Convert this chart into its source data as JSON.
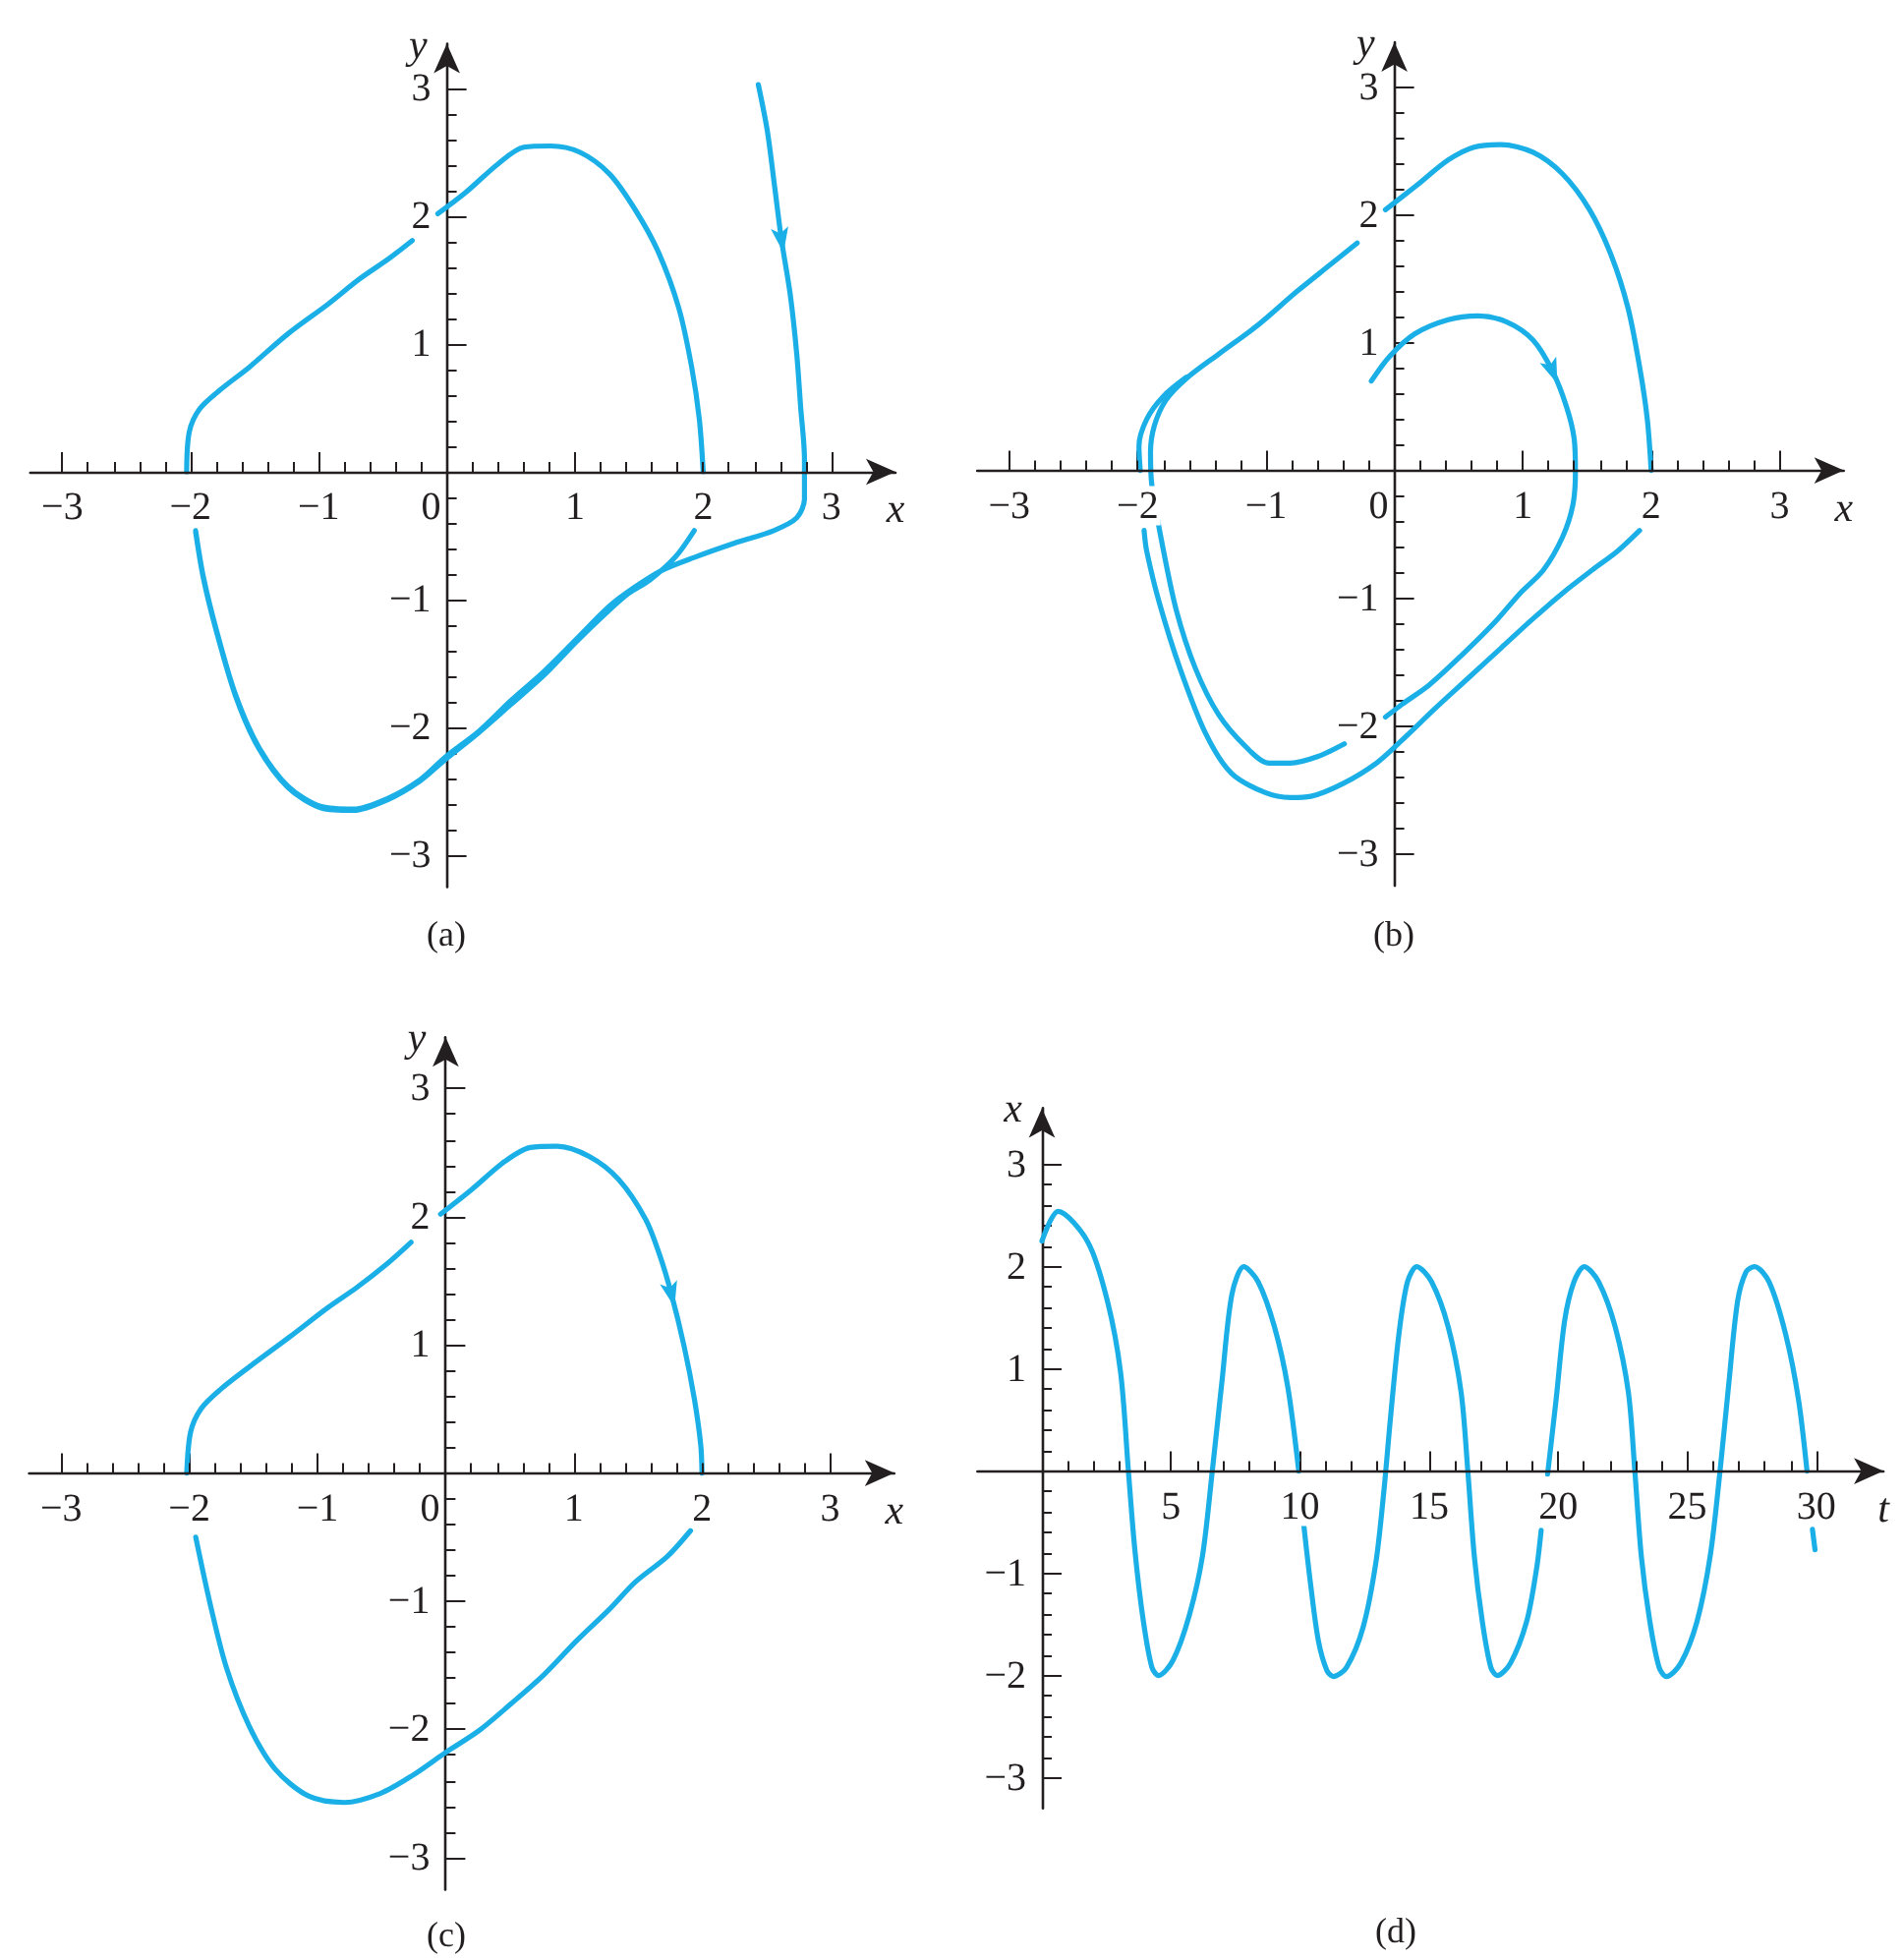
{
  "chart_data": [
    {
      "type": "line",
      "title": "(a)",
      "xlabel": "x",
      "ylabel": "y",
      "xlim": [
        -3.25,
        3.5
      ],
      "ylim": [
        -3.25,
        3.35
      ],
      "xticks": [
        {
          "value": -3,
          "label": "−3"
        },
        {
          "value": -2.8,
          "label": null
        },
        {
          "value": -2.6,
          "label": null
        },
        {
          "value": -2.4,
          "label": null
        },
        {
          "value": -2.2,
          "label": null
        },
        {
          "value": -2,
          "label": "−2"
        },
        {
          "value": -1.8,
          "label": null
        },
        {
          "value": -1.6,
          "label": null
        },
        {
          "value": -1.4,
          "label": null
        },
        {
          "value": -1.2,
          "label": null
        },
        {
          "value": -1,
          "label": "−1"
        },
        {
          "value": -0.8,
          "label": null
        },
        {
          "value": -0.6,
          "label": null
        },
        {
          "value": -0.4,
          "label": null
        },
        {
          "value": -0.2,
          "label": null
        },
        0,
        {
          "value": 0.2,
          "label": null
        },
        {
          "value": 0.4,
          "label": null
        },
        {
          "value": 0.6,
          "label": null
        },
        {
          "value": 0.8,
          "label": null
        },
        1,
        {
          "value": 1.2,
          "label": null
        },
        {
          "value": 1.4,
          "label": null
        },
        {
          "value": 1.6,
          "label": null
        },
        {
          "value": 1.8,
          "label": null
        },
        2,
        {
          "value": 2.2,
          "label": null
        },
        {
          "value": 2.4,
          "label": null
        },
        {
          "value": 2.6,
          "label": null
        },
        {
          "value": 2.8,
          "label": null
        },
        3
      ],
      "yticks": [
        {
          "value": -3,
          "label": "−3"
        },
        {
          "value": -2.8,
          "label": null
        },
        {
          "value": -2.6,
          "label": null
        },
        {
          "value": -2.4,
          "label": null
        },
        {
          "value": -2.2,
          "label": null
        },
        {
          "value": -2,
          "label": "−2"
        },
        {
          "value": -1.8,
          "label": null
        },
        {
          "value": -1.6,
          "label": null
        },
        {
          "value": -1.4,
          "label": null
        },
        {
          "value": -1.2,
          "label": null
        },
        {
          "value": -1,
          "label": "−1"
        },
        {
          "value": -0.8,
          "label": null
        },
        {
          "value": -0.6,
          "label": null
        },
        {
          "value": -0.4,
          "label": null
        },
        {
          "value": -0.2,
          "label": null
        },
        {
          "value": 0.2,
          "label": null
        },
        {
          "value": 0.4,
          "label": null
        },
        {
          "value": 0.6,
          "label": null
        },
        {
          "value": 0.8,
          "label": null
        },
        1,
        {
          "value": 1.2,
          "label": null
        },
        {
          "value": 1.4,
          "label": null
        },
        {
          "value": 1.6,
          "label": null
        },
        {
          "value": 1.8,
          "label": null
        },
        2,
        {
          "value": 2.2,
          "label": null
        },
        {
          "value": 2.4,
          "label": null
        },
        {
          "value": 2.6,
          "label": null
        },
        {
          "value": 2.8,
          "label": null
        },
        3
      ],
      "series": [
        {
          "color": "#1aafe6",
          "x": [
            2.43,
            2.5,
            2.56,
            2.61,
            2.68,
            2.73,
            2.76,
            2.79,
            2.79,
            2.73,
            2.55,
            2.24,
            1.93,
            1.68,
            1.47,
            1.27,
            1.01,
            0.76,
            0.5,
            0.25,
            -0.01,
            -0.21,
            -0.47,
            -0.73,
            -0.98,
            -1.24,
            -1.47,
            -1.65,
            -1.8,
            -1.9,
            -1.96,
            null,
            -2.03,
            -2.01,
            -1.93,
            -1.77,
            -1.54,
            -1.24,
            -0.93,
            -0.68,
            -0.45,
            -0.27,
            null,
            -0.07,
            0.14,
            0.4,
            0.6,
            0.81,
            1.04,
            1.27,
            1.47,
            1.65,
            1.81,
            1.91,
            1.97,
            2.0,
            null,
            1.93,
            1.78,
            1.58,
            1.42,
            1.27,
            1.01,
            0.76,
            0.5,
            0.25,
            -0.01,
            -0.21,
            -0.47,
            -0.73,
            -0.98,
            -1.24,
            -1.47,
            -1.65,
            -1.8,
            -1.9,
            -1.96
          ],
          "values": [
            3.03,
            2.67,
            2.21,
            1.82,
            1.38,
            0.92,
            0.51,
            0.1,
            -0.21,
            -0.36,
            -0.46,
            -0.56,
            -0.67,
            -0.77,
            -0.9,
            -1.05,
            -1.31,
            -1.56,
            -1.79,
            -2.03,
            -2.23,
            -2.41,
            -2.56,
            -2.64,
            -2.62,
            -2.46,
            -2.15,
            -1.74,
            -1.23,
            -0.82,
            -0.46,
            null,
            0,
            0.31,
            0.49,
            0.64,
            0.82,
            1.08,
            1.31,
            1.51,
            1.67,
            1.81,
            null,
            2.02,
            2.18,
            2.41,
            2.54,
            2.55,
            2.5,
            2.33,
            2.05,
            1.72,
            1.28,
            0.82,
            0.41,
            0,
            null,
            -0.46,
            -0.67,
            -0.85,
            -0.95,
            -1.08,
            -1.33,
            -1.59,
            -1.82,
            -2.04,
            -2.25,
            -2.42,
            -2.57,
            -2.65,
            -2.63,
            -2.47,
            -2.16,
            -1.75,
            -1.24,
            -0.83,
            -0.47
          ]
        }
      ]
    },
    {
      "type": "line",
      "title": "(b)",
      "xlabel": "x",
      "ylabel": "y",
      "xlim": [
        -3.25,
        3.5
      ],
      "ylim": [
        -3.25,
        3.35
      ],
      "xticks": [
        {
          "value": -3,
          "label": "−3"
        },
        {
          "value": -2.8,
          "label": null
        },
        {
          "value": -2.6,
          "label": null
        },
        {
          "value": -2.4,
          "label": null
        },
        {
          "value": -2.2,
          "label": null
        },
        {
          "value": -2,
          "label": "−2"
        },
        {
          "value": -1.8,
          "label": null
        },
        {
          "value": -1.6,
          "label": null
        },
        {
          "value": -1.4,
          "label": null
        },
        {
          "value": -1.2,
          "label": null
        },
        {
          "value": -1,
          "label": "−1"
        },
        {
          "value": -0.8,
          "label": null
        },
        {
          "value": -0.6,
          "label": null
        },
        {
          "value": -0.4,
          "label": null
        },
        {
          "value": -0.2,
          "label": null
        },
        0,
        {
          "value": 0.2,
          "label": null
        },
        {
          "value": 0.4,
          "label": null
        },
        {
          "value": 0.6,
          "label": null
        },
        {
          "value": 0.8,
          "label": null
        },
        1,
        {
          "value": 1.2,
          "label": null
        },
        {
          "value": 1.4,
          "label": null
        },
        {
          "value": 1.6,
          "label": null
        },
        {
          "value": 1.8,
          "label": null
        },
        2,
        {
          "value": 2.2,
          "label": null
        },
        {
          "value": 2.4,
          "label": null
        },
        {
          "value": 2.6,
          "label": null
        },
        {
          "value": 2.8,
          "label": null
        },
        3
      ],
      "yticks": [
        {
          "value": -3,
          "label": "−3"
        },
        {
          "value": -2.8,
          "label": null
        },
        {
          "value": -2.6,
          "label": null
        },
        {
          "value": -2.4,
          "label": null
        },
        {
          "value": -2.2,
          "label": null
        },
        {
          "value": -2,
          "label": "−2"
        },
        {
          "value": -1.8,
          "label": null
        },
        {
          "value": -1.6,
          "label": null
        },
        {
          "value": -1.4,
          "label": null
        },
        {
          "value": -1.2,
          "label": null
        },
        {
          "value": -1,
          "label": "−1"
        },
        {
          "value": -0.8,
          "label": null
        },
        {
          "value": -0.6,
          "label": null
        },
        {
          "value": -0.4,
          "label": null
        },
        {
          "value": -0.2,
          "label": null
        },
        {
          "value": 0.2,
          "label": null
        },
        {
          "value": 0.4,
          "label": null
        },
        {
          "value": 0.6,
          "label": null
        },
        {
          "value": 0.8,
          "label": null
        },
        1,
        {
          "value": 1.2,
          "label": null
        },
        {
          "value": 1.4,
          "label": null
        },
        {
          "value": 1.6,
          "label": null
        },
        {
          "value": 1.8,
          "label": null
        },
        2,
        {
          "value": 2.2,
          "label": null
        },
        {
          "value": 2.4,
          "label": null
        },
        {
          "value": 2.6,
          "label": null
        },
        {
          "value": 2.8,
          "label": null
        },
        3
      ],
      "series": [
        {
          "color": "#1aafe6",
          "x": [
            -0.18,
            -0.04,
            0.16,
            0.42,
            0.65,
            0.88,
            1.08,
            1.23,
            1.34,
            1.4,
            1.41,
            1.39,
            1.31,
            1.16,
            0.98,
            0.78,
            0.52,
            0.27,
            0.06,
            -0.07,
            null,
            -0.39,
            -0.6,
            -0.81,
            -0.98,
            -1.16,
            -1.37,
            -1.55,
            -1.7,
            -1.81,
            -1.89,
            -1.9,
            -1.87,
            -1.78,
            -1.62,
            -1.37,
            -1.06,
            -0.76,
            -0.5,
            -0.29,
            null,
            -0.07,
            0.16,
            0.42,
            0.62,
            0.83,
            1.08,
            1.31,
            1.52,
            1.69,
            1.82,
            1.91,
            1.97,
            2.0,
            null,
            1.91,
            1.74,
            1.54,
            1.31,
            1.08,
            0.83,
            0.57,
            0.32,
            0.06,
            -0.14,
            -0.4,
            -0.65,
            -0.81,
            -1.01,
            -1.27,
            -1.47,
            -1.67,
            -1.83,
            -1.93,
            -1.95,
            null,
            -1.98,
            -1.99,
            -1.93,
            -1.8,
            -1.62
          ],
          "values": [
            0.7,
            0.89,
            1.07,
            1.18,
            1.21,
            1.16,
            1.02,
            0.78,
            0.5,
            0.25,
            -0.01,
            -0.27,
            -0.52,
            -0.78,
            -0.96,
            -1.19,
            -1.45,
            -1.68,
            -1.83,
            -1.93,
            null,
            -2.14,
            -2.24,
            -2.29,
            -2.29,
            -2.16,
            -1.91,
            -1.55,
            -1.09,
            -0.57,
            -0.11,
            0.14,
            0.35,
            0.55,
            0.72,
            0.91,
            1.14,
            1.4,
            1.61,
            1.78,
            null,
            2.04,
            2.22,
            2.43,
            2.53,
            2.55,
            2.49,
            2.32,
            2.04,
            1.68,
            1.27,
            0.81,
            0.4,
            0,
            null,
            -0.47,
            -0.63,
            -0.78,
            -0.96,
            -1.16,
            -1.39,
            -1.63,
            -1.86,
            -2.11,
            -2.29,
            -2.45,
            -2.55,
            -2.56,
            -2.52,
            -2.37,
            -2.06,
            -1.55,
            -1.04,
            -0.63,
            -0.47,
            null,
            0,
            0.19,
            0.4,
            0.58,
            0.73
          ]
        }
      ]
    },
    {
      "type": "line",
      "title": "(c)",
      "xlabel": "x",
      "ylabel": "y",
      "xlim": [
        -3.25,
        3.5
      ],
      "ylim": [
        -3.25,
        3.4
      ],
      "xticks": [
        {
          "value": -3,
          "label": "−3"
        },
        {
          "value": -2.8,
          "label": null
        },
        {
          "value": -2.6,
          "label": null
        },
        {
          "value": -2.4,
          "label": null
        },
        {
          "value": -2.2,
          "label": null
        },
        {
          "value": -2,
          "label": "−2"
        },
        {
          "value": -1.8,
          "label": null
        },
        {
          "value": -1.6,
          "label": null
        },
        {
          "value": -1.4,
          "label": null
        },
        {
          "value": -1.2,
          "label": null
        },
        {
          "value": -1,
          "label": "−1"
        },
        {
          "value": -0.8,
          "label": null
        },
        {
          "value": -0.6,
          "label": null
        },
        {
          "value": -0.4,
          "label": null
        },
        {
          "value": -0.2,
          "label": null
        },
        0,
        {
          "value": 0.2,
          "label": null
        },
        {
          "value": 0.4,
          "label": null
        },
        {
          "value": 0.6,
          "label": null
        },
        {
          "value": 0.8,
          "label": null
        },
        1,
        {
          "value": 1.2,
          "label": null
        },
        {
          "value": 1.4,
          "label": null
        },
        {
          "value": 1.6,
          "label": null
        },
        {
          "value": 1.8,
          "label": null
        },
        2,
        {
          "value": 2.2,
          "label": null
        },
        {
          "value": 2.4,
          "label": null
        },
        {
          "value": 2.6,
          "label": null
        },
        {
          "value": 2.8,
          "label": null
        },
        3
      ],
      "yticks": [
        {
          "value": -3,
          "label": "−3"
        },
        {
          "value": -2.8,
          "label": null
        },
        {
          "value": -2.6,
          "label": null
        },
        {
          "value": -2.4,
          "label": null
        },
        {
          "value": -2.2,
          "label": null
        },
        {
          "value": -2,
          "label": "−2"
        },
        {
          "value": -1.8,
          "label": null
        },
        {
          "value": -1.6,
          "label": null
        },
        {
          "value": -1.4,
          "label": null
        },
        {
          "value": -1.2,
          "label": null
        },
        {
          "value": -1,
          "label": "−1"
        },
        {
          "value": -0.8,
          "label": null
        },
        {
          "value": -0.6,
          "label": null
        },
        {
          "value": -0.4,
          "label": null
        },
        {
          "value": -0.2,
          "label": null
        },
        {
          "value": 0.2,
          "label": null
        },
        {
          "value": 0.4,
          "label": null
        },
        {
          "value": 0.6,
          "label": null
        },
        {
          "value": 0.8,
          "label": null
        },
        1,
        {
          "value": 1.2,
          "label": null
        },
        {
          "value": 1.4,
          "label": null
        },
        {
          "value": 1.6,
          "label": null
        },
        {
          "value": 1.8,
          "label": null
        },
        2,
        {
          "value": 2.2,
          "label": null
        },
        {
          "value": 2.4,
          "label": null
        },
        {
          "value": 2.6,
          "label": null
        },
        {
          "value": 2.8,
          "label": null
        },
        3
      ],
      "series": [
        {
          "color": "#1aafe6",
          "x": [
            1.91,
            1.73,
            1.48,
            1.28,
            1.02,
            0.77,
            0.51,
            0.26,
            0,
            -0.26,
            -0.51,
            -0.79,
            -1.07,
            -1.33,
            -1.53,
            -1.71,
            -1.84,
            -1.95,
            null,
            -2.02,
            -1.99,
            -1.91,
            -1.76,
            -1.53,
            -1.22,
            -0.92,
            -0.69,
            -0.46,
            -0.27,
            null,
            -0.04,
            0.2,
            0.46,
            0.66,
            0.87,
            1.12,
            1.35,
            1.56,
            1.67,
            1.76,
            1.86,
            1.94,
            1.99,
            2.0
          ],
          "values": [
            -0.45,
            -0.65,
            -0.85,
            -1.06,
            -1.31,
            -1.57,
            -1.8,
            -2.01,
            -2.18,
            -2.36,
            -2.5,
            -2.57,
            -2.52,
            -2.31,
            -1.98,
            -1.52,
            -1.01,
            -0.5,
            null,
            0,
            0.32,
            0.5,
            0.65,
            0.83,
            1.06,
            1.29,
            1.45,
            1.63,
            1.8,
            null,
            2.02,
            2.21,
            2.43,
            2.54,
            2.55,
            2.47,
            2.29,
            1.98,
            1.7,
            1.4,
            0.99,
            0.58,
            0.22,
            0
          ]
        }
      ]
    },
    {
      "type": "line",
      "title": "(d)",
      "xlabel": "t",
      "ylabel": "x",
      "xlim": [
        -2.5,
        32.6
      ],
      "ylim": [
        -3.3,
        3.55
      ],
      "xticks": [
        {
          "value": 1,
          "label": null
        },
        {
          "value": 2,
          "label": null
        },
        {
          "value": 3,
          "label": null
        },
        {
          "value": 4,
          "label": null
        },
        5,
        {
          "value": 6,
          "label": null
        },
        {
          "value": 7,
          "label": null
        },
        {
          "value": 8,
          "label": null
        },
        {
          "value": 9,
          "label": null
        },
        10,
        {
          "value": 11,
          "label": null
        },
        {
          "value": 12,
          "label": null
        },
        {
          "value": 13,
          "label": null
        },
        {
          "value": 14,
          "label": null
        },
        15,
        {
          "value": 16,
          "label": null
        },
        {
          "value": 17,
          "label": null
        },
        {
          "value": 18,
          "label": null
        },
        {
          "value": 19,
          "label": null
        },
        20,
        {
          "value": 21,
          "label": null
        },
        {
          "value": 22,
          "label": null
        },
        {
          "value": 23,
          "label": null
        },
        {
          "value": 24,
          "label": null
        },
        25,
        {
          "value": 26,
          "label": null
        },
        {
          "value": 27,
          "label": null
        },
        {
          "value": 28,
          "label": null
        },
        {
          "value": 29,
          "label": null
        },
        30
      ],
      "yticks": [
        {
          "value": -3,
          "label": "−3"
        },
        {
          "value": -2.8,
          "label": null
        },
        {
          "value": -2.6,
          "label": null
        },
        {
          "value": -2.4,
          "label": null
        },
        {
          "value": -2.2,
          "label": null
        },
        {
          "value": -2,
          "label": "−2"
        },
        {
          "value": -1.8,
          "label": null
        },
        {
          "value": -1.6,
          "label": null
        },
        {
          "value": -1.4,
          "label": null
        },
        {
          "value": -1.2,
          "label": null
        },
        {
          "value": -1,
          "label": "−1"
        },
        {
          "value": -0.8,
          "label": null
        },
        {
          "value": -0.6,
          "label": null
        },
        {
          "value": -0.4,
          "label": null
        },
        {
          "value": -0.2,
          "label": null
        },
        {
          "value": 0.2,
          "label": null
        },
        {
          "value": 0.4,
          "label": null
        },
        {
          "value": 0.6,
          "label": null
        },
        {
          "value": 0.8,
          "label": null
        },
        1,
        {
          "value": 1.2,
          "label": null
        },
        {
          "value": 1.4,
          "label": null
        },
        {
          "value": 1.6,
          "label": null
        },
        {
          "value": 1.8,
          "label": null
        },
        2,
        {
          "value": 2.2,
          "label": null
        },
        {
          "value": 2.4,
          "label": null
        },
        {
          "value": 2.6,
          "label": null
        },
        {
          "value": 2.8,
          "label": null
        },
        3
      ],
      "series": [
        {
          "color": "#1aafe6",
          "x": [
            0,
            0.63,
            1.78,
            2.54,
            3.05,
            3.35,
            3.6,
            3.93,
            4.26,
            4.52,
            5.08,
            5.71,
            6.22,
            6.6,
            6.98,
            7.36,
            7.82,
            8.38,
            9.01,
            9.52,
            9.95,
            null,
            10.15,
            10.4,
            10.71,
            11.04,
            11.29,
            11.8,
            12.44,
            12.94,
            13.25,
            13.5,
            13.83,
            14.16,
            14.52,
            15.1,
            15.74,
            16.24,
            16.5,
            16.75,
            17.06,
            17.39,
            17.64,
            18.15,
            18.78,
            19.16,
            19.34,
            null,
            19.59,
            19.92,
            20.25,
            20.61,
            21.01,
            21.57,
            22.21,
            22.72,
            22.97,
            23.22,
            23.55,
            23.91,
            24.19,
            24.75,
            25.38,
            25.89,
            26.27,
            26.6,
            26.95,
            27.28,
            27.61,
            28.17,
            28.81,
            29.31,
            29.64,
            null,
            29.85,
            29.95
          ],
          "values": [
            2.25,
            2.54,
            2.24,
            1.66,
            0.96,
            0,
            -0.77,
            -1.47,
            -1.92,
            -2.0,
            -1.85,
            -1.41,
            -0.83,
            0,
            0.89,
            1.73,
            2.0,
            1.85,
            1.41,
            0.83,
            0,
            null,
            -0.54,
            -1.09,
            -1.66,
            -1.95,
            -2.01,
            -1.92,
            -1.53,
            -0.89,
            -0.19,
            0.51,
            1.34,
            1.85,
            2.0,
            1.85,
            1.41,
            0.77,
            0,
            -0.83,
            -1.47,
            -1.92,
            -2.0,
            -1.88,
            -1.47,
            -0.96,
            -0.58,
            null,
            -0.03,
            0.7,
            1.47,
            1.85,
            2.0,
            1.85,
            1.41,
            0.77,
            0,
            -0.83,
            -1.47,
            -1.92,
            -2.01,
            -1.88,
            -1.47,
            -0.83,
            0,
            0.83,
            1.66,
            1.95,
            2.0,
            1.85,
            1.34,
            0.7,
            0,
            null,
            -0.57,
            -0.77
          ]
        }
      ]
    }
  ]
}
